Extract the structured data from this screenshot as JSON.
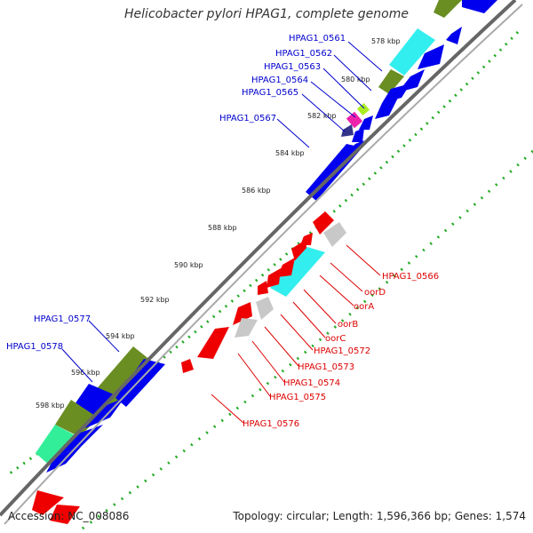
{
  "title": "Helicobacter pylori HPAG1, complete genome",
  "footer": {
    "accession": "Accession: NC_008086",
    "topology": "Topology: circular; Length: 1,596,366 bp; Genes: 1,574"
  },
  "colors": {
    "forward_gene": "#0000ee",
    "reverse_gene": "#ee0000",
    "forward_label": "#0000cc",
    "reverse_label": "#dd0000",
    "cyan_gene": "#33eeee",
    "olive_gene": "#6b8e23",
    "grey_gene": "#c8c8c8",
    "green_dots": "#22aa22",
    "backbone": "#666666"
  },
  "ticks": [
    "578 kbp",
    "580 kbp",
    "582 kbp",
    "584 kbp",
    "586 kbp",
    "588 kbp",
    "590 kbp",
    "592 kbp",
    "594 kbp",
    "596 kbp",
    "598 kbp"
  ],
  "forward_labels": [
    "HPAG1_0561",
    "HPAG1_0562",
    "HPAG1_0563",
    "HPAG1_0564",
    "HPAG1_0565",
    "HPAG1_0567",
    "HPAG1_0577",
    "HPAG1_0578"
  ],
  "reverse_labels": [
    "HPAG1_0566",
    "oorD",
    "oorA",
    "oorB",
    "oorC",
    "HPAG1_0572",
    "HPAG1_0573",
    "HPAG1_0574",
    "HPAG1_0575",
    "HPAG1_0576"
  ]
}
